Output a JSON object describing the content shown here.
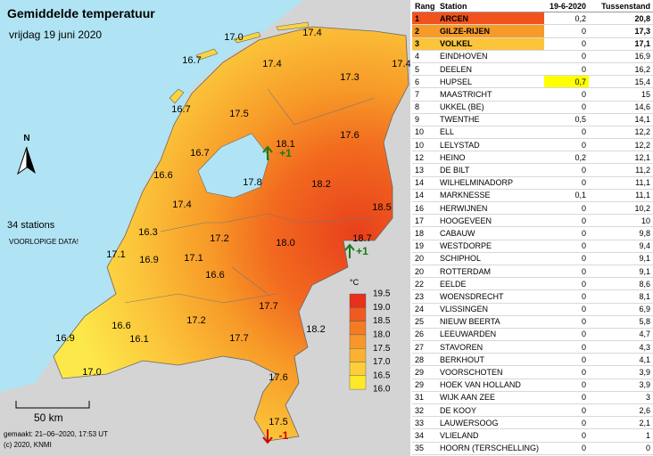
{
  "map": {
    "title": "Gemiddelde temperatuur",
    "subtitle": "vrijdag 19 juni 2020",
    "north": "N",
    "stations_count": "34 stations",
    "notice": "VOORLOPIGE DATA!",
    "scale": "50 km",
    "made": "gemaakt: 21–06–2020, 17:53 UT",
    "copyright": "(c) 2020, KNMI",
    "values": [
      "17.0",
      "17.4",
      "16.7",
      "17.4",
      "17.4",
      "17.3",
      "16.7",
      "17.5",
      "18.1",
      "17.6",
      "16.7",
      "16.6",
      "17.8",
      "18.2",
      "17.4",
      "18.5",
      "16.3",
      "17.2",
      "18.0",
      "18.7",
      "17.1",
      "16.9",
      "17.1",
      "16.6",
      "17.7",
      "16.6",
      "17.2",
      "18.2",
      "16.9",
      "16.1",
      "17.7",
      "17.0",
      "17.6",
      "17.5"
    ],
    "changes": [
      "+1",
      "+1",
      "-1"
    ],
    "legend": {
      "unit": "°C",
      "ticks": [
        "19.5",
        "19.0",
        "18.5",
        "18.0",
        "17.5",
        "17.0",
        "16.5",
        "16.0"
      ]
    }
  },
  "table": {
    "header": [
      "Rang",
      "Station",
      "19-6-2020",
      "Tussenstand"
    ],
    "rows": [
      [
        "1",
        "ARCEN",
        "0,2",
        "20,8"
      ],
      [
        "2",
        "GILZE-RIJEN",
        "0",
        "17,3"
      ],
      [
        "3",
        "VOLKEL",
        "0",
        "17,1"
      ],
      [
        "4",
        "EINDHOVEN",
        "0",
        "16,9"
      ],
      [
        "5",
        "DEELEN",
        "0",
        "16,2"
      ],
      [
        "6",
        "HUPSEL",
        "0,7",
        "15,4"
      ],
      [
        "7",
        "MAASTRICHT",
        "0",
        "15"
      ],
      [
        "8",
        "UKKEL (BE)",
        "0",
        "14,6"
      ],
      [
        "9",
        "TWENTHE",
        "0,5",
        "14,1"
      ],
      [
        "10",
        "ELL",
        "0",
        "12,2"
      ],
      [
        "10",
        "LELYSTAD",
        "0",
        "12,2"
      ],
      [
        "12",
        "HEINO",
        "0,2",
        "12,1"
      ],
      [
        "13",
        "DE BILT",
        "0",
        "11,2"
      ],
      [
        "14",
        "WILHELMINADORP",
        "0",
        "11,1"
      ],
      [
        "14",
        "MARKNESSE",
        "0,1",
        "11,1"
      ],
      [
        "16",
        "HERWIJNEN",
        "0",
        "10,2"
      ],
      [
        "17",
        "HOOGEVEEN",
        "0",
        "10"
      ],
      [
        "18",
        "CABAUW",
        "0",
        "9,8"
      ],
      [
        "19",
        "WESTDORPE",
        "0",
        "9,4"
      ],
      [
        "20",
        "SCHIPHOL",
        "0",
        "9,1"
      ],
      [
        "20",
        "ROTTERDAM",
        "0",
        "9,1"
      ],
      [
        "22",
        "EELDE",
        "0",
        "8,6"
      ],
      [
        "23",
        "WOENSDRECHT",
        "0",
        "8,1"
      ],
      [
        "24",
        "VLISSINGEN",
        "0",
        "6,9"
      ],
      [
        "25",
        "NIEUW BEERTA",
        "0",
        "5,8"
      ],
      [
        "26",
        "LEEUWARDEN",
        "0",
        "4,7"
      ],
      [
        "27",
        "STAVOREN",
        "0",
        "4,3"
      ],
      [
        "28",
        "BERKHOUT",
        "0",
        "4,1"
      ],
      [
        "29",
        "VOORSCHOTEN",
        "0",
        "3,9"
      ],
      [
        "29",
        "HOEK VAN HOLLAND",
        "0",
        "3,9"
      ],
      [
        "31",
        "WIJK AAN ZEE",
        "0",
        "3"
      ],
      [
        "32",
        "DE KOOY",
        "0",
        "2,6"
      ],
      [
        "33",
        "LAUWERSOOG",
        "0",
        "2,1"
      ],
      [
        "34",
        "VLIELAND",
        "0",
        "1"
      ],
      [
        "35",
        "HOORN (TERSCHELLING)",
        "0",
        "0"
      ]
    ]
  }
}
